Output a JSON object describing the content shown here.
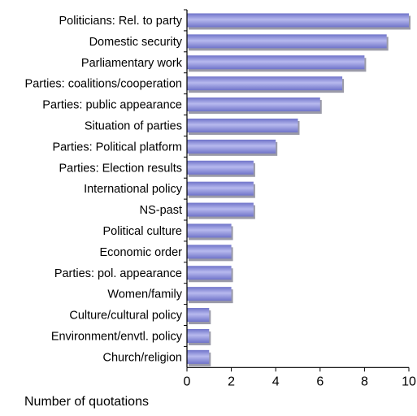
{
  "chart_data": {
    "type": "bar",
    "orientation": "horizontal",
    "title": "",
    "xlabel": "Number of quotations",
    "ylabel": "",
    "xlim": [
      0,
      10
    ],
    "xticks": [
      0,
      2,
      4,
      6,
      8,
      10
    ],
    "grid": false,
    "legend": "none",
    "bar_color": "#6f73c9",
    "bar_highlight": "#b7b9ee",
    "bar_shadow": "#9a9aa8",
    "categories": [
      "Politicians: Rel. to party",
      "Domestic security",
      "Parliamentary work",
      "Parties: coalitions/cooperation",
      "Parties: public appearance",
      "Situation of parties",
      "Parties: Political platform",
      "Parties: Election results",
      "International policy",
      "NS-past",
      "Political culture",
      "Economic order",
      "Parties: pol. appearance",
      "Women/family",
      "Culture/cultural policy",
      "Environment/envtl. policy",
      "Church/religion"
    ],
    "values": [
      10,
      9,
      8,
      7,
      6,
      5,
      4,
      3,
      3,
      3,
      2,
      2,
      2,
      2,
      1,
      1,
      1
    ]
  }
}
